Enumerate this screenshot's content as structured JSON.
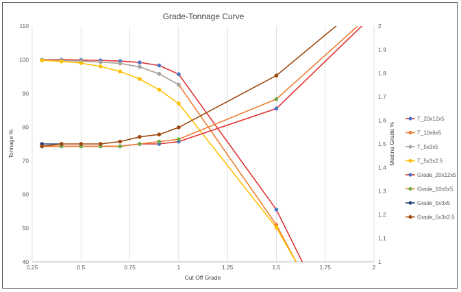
{
  "chart_data": {
    "type": "line",
    "title": "Grade-Tonnage Curve",
    "xlabel": "Cut Off Grade",
    "ylabel": "Tonnage %",
    "y2label": "Medina Grade %",
    "xlim": [
      0.25,
      2
    ],
    "ylim": [
      40,
      110
    ],
    "y2lim": [
      1,
      2
    ],
    "x_ticks": [
      "0.25",
      "0.5",
      "0.75",
      "1",
      "1.25",
      "1.5",
      "1.75",
      "2"
    ],
    "y_ticks": [
      "40",
      "50",
      "60",
      "70",
      "80",
      "90",
      "100",
      "110"
    ],
    "y2_ticks": [
      "1",
      "1.1",
      "1.2",
      "1.3",
      "1.4",
      "1.5",
      "1.6",
      "1.7",
      "1.8",
      "1.9",
      "2"
    ],
    "grid": "vertical",
    "legend_position": "right",
    "series": [
      {
        "name": "T_20x12x5",
        "axis": "left",
        "color": "#e03030",
        "marker": "#4472c4",
        "x": [
          0.3,
          0.4,
          0.5,
          0.6,
          0.7,
          0.8,
          0.9,
          1.0,
          1.5,
          1.65
        ],
        "y": [
          100,
          100,
          99.9,
          99.8,
          99.6,
          99.2,
          98.3,
          95.7,
          55.5,
          38
        ]
      },
      {
        "name": "T_10x6x5",
        "axis": "left",
        "color": "#ed7d31",
        "marker": "#ed7d31",
        "x": [
          0.3,
          0.4,
          0.5,
          0.6,
          0.7,
          0.8,
          0.9,
          1.0,
          1.5,
          1.62
        ],
        "y": [
          99.9,
          99.8,
          99.6,
          99.3,
          98.9,
          97.9,
          95.8,
          92.6,
          51.0,
          38
        ]
      },
      {
        "name": "T_5x3x5",
        "axis": "left",
        "color": "#a5a5a5",
        "marker": "#a5a5a5",
        "x": [
          0.3,
          0.4,
          0.5,
          0.6,
          0.7,
          0.8,
          0.9,
          1.0
        ],
        "y": [
          99.9,
          99.8,
          99.6,
          99.3,
          98.9,
          97.9,
          95.8,
          92.6
        ]
      },
      {
        "name": "T_5x3x2.5",
        "axis": "left",
        "color": "#ffc000",
        "marker": "#ffc000",
        "x": [
          0.3,
          0.4,
          0.5,
          0.6,
          0.7,
          0.8,
          0.9,
          1.0,
          1.5,
          1.62
        ],
        "y": [
          99.8,
          99.5,
          99.0,
          98.0,
          96.5,
          94.3,
          91.1,
          87.0,
          50.2,
          38
        ]
      },
      {
        "name": "Grade_20x12x5",
        "axis": "right",
        "color": "#e03030",
        "marker": "#4472c4",
        "x": [
          0.3,
          0.4,
          0.5,
          0.6,
          0.7,
          0.8,
          0.9,
          1.0,
          1.5,
          1.95
        ],
        "y": [
          1.49,
          1.49,
          1.49,
          1.49,
          1.49,
          1.5,
          1.5,
          1.51,
          1.65,
          2.01
        ]
      },
      {
        "name": "Grade_10x6x5",
        "axis": "right",
        "color": "#ed7d31",
        "marker": "#70ad47",
        "x": [
          0.3,
          0.4,
          0.5,
          0.6,
          0.7,
          0.8,
          0.9,
          1.0,
          1.5,
          1.93
        ],
        "y": [
          1.49,
          1.49,
          1.49,
          1.49,
          1.49,
          1.5,
          1.51,
          1.52,
          1.69,
          2.01
        ]
      },
      {
        "name": "Grade_5x3x5",
        "axis": "right",
        "color": "#264478",
        "marker": "#264478",
        "x": [
          0.3,
          0.4
        ],
        "y": [
          1.5,
          1.5
        ]
      },
      {
        "name": "Grade_5x3x2.5",
        "axis": "right",
        "color": "#9e480e",
        "marker": "#9e480e",
        "x": [
          0.3,
          0.4,
          0.5,
          0.6,
          0.7,
          0.8,
          0.9,
          1.0,
          1.5,
          1.82
        ],
        "y": [
          1.49,
          1.5,
          1.5,
          1.5,
          1.51,
          1.53,
          1.54,
          1.57,
          1.79,
          2.01
        ]
      }
    ]
  }
}
